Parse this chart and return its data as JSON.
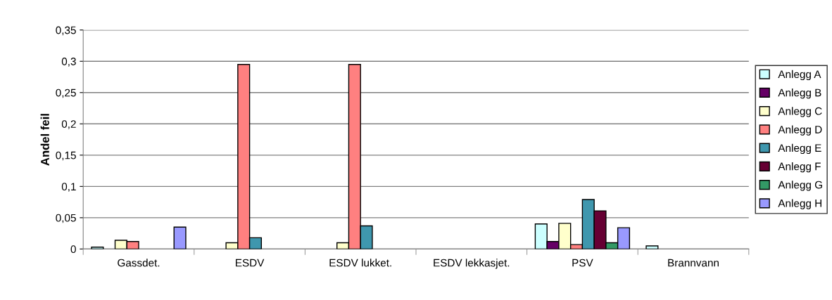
{
  "chart_data": {
    "type": "bar",
    "ylabel": "Andel feil",
    "categories": [
      "Gassdet.",
      "ESDV",
      "ESDV lukket.",
      "ESDV lekkasjet.",
      "PSV",
      "Brannvann"
    ],
    "series": [
      {
        "name": "Anlegg A",
        "color": "#ccffff",
        "values": [
          0.003,
          0,
          0,
          0,
          0.04,
          0.005
        ]
      },
      {
        "name": "Anlegg B",
        "color": "#660066",
        "values": [
          0,
          0,
          0,
          0,
          0.012,
          0
        ]
      },
      {
        "name": "Anlegg C",
        "color": "#ffffcc",
        "values": [
          0.014,
          0.01,
          0.01,
          0,
          0.041,
          0
        ]
      },
      {
        "name": "Anlegg D",
        "color": "#ff8080",
        "values": [
          0.012,
          0.295,
          0.295,
          0,
          0.007,
          0
        ]
      },
      {
        "name": "Anlegg E",
        "color": "#3f97ae",
        "values": [
          0,
          0.018,
          0.037,
          0,
          0.079,
          0
        ]
      },
      {
        "name": "Anlegg F",
        "color": "#660033",
        "values": [
          0,
          0,
          0,
          0,
          0.061,
          0
        ]
      },
      {
        "name": "Anlegg G",
        "color": "#339966",
        "values": [
          0,
          0,
          0,
          0,
          0.01,
          0
        ]
      },
      {
        "name": "Anlegg H",
        "color": "#9999ff",
        "values": [
          0.035,
          0,
          0,
          0,
          0.034,
          0
        ]
      }
    ],
    "ylim": [
      0,
      0.35
    ],
    "yticks": [
      {
        "value": 0,
        "label": "0"
      },
      {
        "value": 0.05,
        "label": "0,05"
      },
      {
        "value": 0.1,
        "label": "0,1"
      },
      {
        "value": 0.15,
        "label": "0,15"
      },
      {
        "value": 0.2,
        "label": "0,2"
      },
      {
        "value": 0.25,
        "label": "0,25"
      },
      {
        "value": 0.3,
        "label": "0,3"
      },
      {
        "value": 0.35,
        "label": "0,35"
      }
    ],
    "grid": "y",
    "legend": "right"
  }
}
